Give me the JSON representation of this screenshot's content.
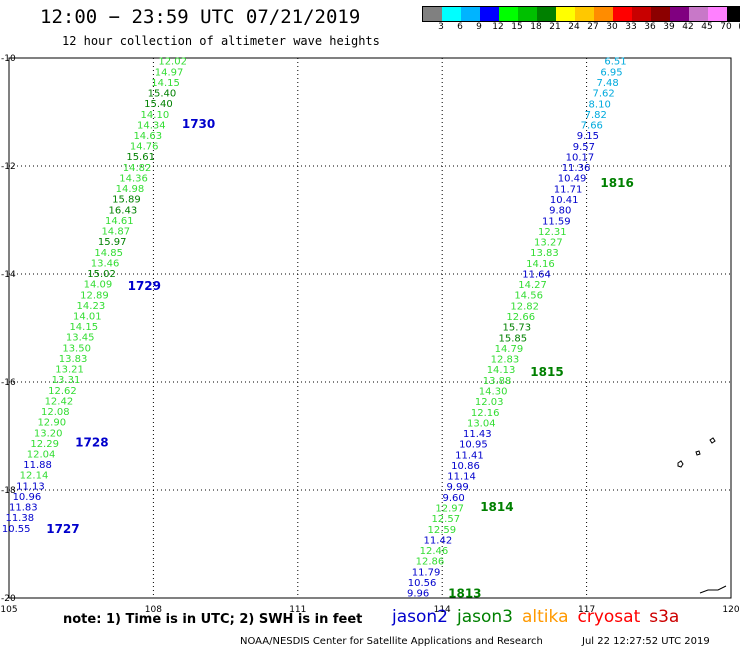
{
  "header": {
    "title": "12:00 − 23:59 UTC 07/21/2019",
    "subtitle": "12 hour collection of altimeter wave heights"
  },
  "colorbar": {
    "colors": [
      "#808080",
      "#00ffff",
      "#00b4ff",
      "#0000ff",
      "#00ff00",
      "#00c000",
      "#008000",
      "#ffff00",
      "#ffc800",
      "#ff8c00",
      "#ff0000",
      "#c80000",
      "#8c0000",
      "#800080",
      "#c878c8",
      "#ff80ff",
      "#000000"
    ],
    "labels": [
      "3",
      "6",
      "9",
      "12",
      "15",
      "18",
      "21",
      "24",
      "27",
      "30",
      "33",
      "36",
      "39",
      "42",
      "45",
      "70",
      "(ft)"
    ]
  },
  "chart_data": {
    "type": "map",
    "xlabel_ticks": [
      "105",
      "108",
      "111",
      "114",
      "117",
      "120"
    ],
    "ylabel_ticks": [
      "-10",
      "-12",
      "-14",
      "-16",
      "-18",
      "-20"
    ],
    "lon_range": [
      105,
      120
    ],
    "lat_range": [
      -20,
      -10
    ],
    "satellite_colors": {
      "jason2": "#0000cc",
      "jason3": "#008000",
      "altika": "#ff9900",
      "cryosat": "#ff0000",
      "s3a": "#cc0000"
    },
    "tracks": [
      {
        "pass_times": [
          {
            "label": "1727",
            "lat": -18.7,
            "sat": "jason2"
          },
          {
            "label": "1728",
            "lat": -17.1,
            "sat": "jason2"
          },
          {
            "label": "1729",
            "lat": -14.2,
            "sat": "jason2"
          },
          {
            "label": "1730",
            "lat": -11.2,
            "sat": "jason2"
          }
        ],
        "lon_start": 105.15,
        "lat_start": -18.7,
        "lon_end": 108.4,
        "lat_end": -10.05,
        "points": [
          {
            "v": "10.55",
            "c": "#0000cc"
          },
          {
            "v": "11.38",
            "c": "#0000cc"
          },
          {
            "v": "11.83",
            "c": "#0000cc"
          },
          {
            "v": "10.96",
            "c": "#0000cc"
          },
          {
            "v": "11.13",
            "c": "#0000cc"
          },
          {
            "v": "12.14",
            "c": "#33dd33"
          },
          {
            "v": "11.88",
            "c": "#0000cc"
          },
          {
            "v": "12.04",
            "c": "#33dd33"
          },
          {
            "v": "12.29",
            "c": "#33dd33"
          },
          {
            "v": "13.20",
            "c": "#33dd33"
          },
          {
            "v": "12.90",
            "c": "#33dd33"
          },
          {
            "v": "12.08",
            "c": "#33dd33"
          },
          {
            "v": "12.42",
            "c": "#33dd33"
          },
          {
            "v": "12.62",
            "c": "#33dd33"
          },
          {
            "v": "13.31",
            "c": "#33dd33"
          },
          {
            "v": "13.21",
            "c": "#33dd33"
          },
          {
            "v": "13.83",
            "c": "#33dd33"
          },
          {
            "v": "13.50",
            "c": "#33dd33"
          },
          {
            "v": "13.45",
            "c": "#33dd33"
          },
          {
            "v": "14.15",
            "c": "#33dd33"
          },
          {
            "v": "14.01",
            "c": "#33dd33"
          },
          {
            "v": "14.23",
            "c": "#33dd33"
          },
          {
            "v": "12.89",
            "c": "#33dd33"
          },
          {
            "v": "14.09",
            "c": "#33dd33"
          },
          {
            "v": "15.02",
            "c": "#008000"
          },
          {
            "v": "13.46",
            "c": "#33dd33"
          },
          {
            "v": "14.85",
            "c": "#33dd33"
          },
          {
            "v": "15.97",
            "c": "#008000"
          },
          {
            "v": "14.87",
            "c": "#33dd33"
          },
          {
            "v": "14.61",
            "c": "#33dd33"
          },
          {
            "v": "16.43",
            "c": "#008000"
          },
          {
            "v": "15.89",
            "c": "#008000"
          },
          {
            "v": "14.98",
            "c": "#33dd33"
          },
          {
            "v": "14.36",
            "c": "#33dd33"
          },
          {
            "v": "14.82",
            "c": "#33dd33"
          },
          {
            "v": "15.61",
            "c": "#008000"
          },
          {
            "v": "14.76",
            "c": "#33dd33"
          },
          {
            "v": "14.63",
            "c": "#33dd33"
          },
          {
            "v": "14.34",
            "c": "#33dd33"
          },
          {
            "v": "14.10",
            "c": "#33dd33"
          },
          {
            "v": "15.40",
            "c": "#008000"
          },
          {
            "v": "15.40",
            "c": "#008000"
          },
          {
            "v": "14.15",
            "c": "#33dd33"
          },
          {
            "v": "14.97",
            "c": "#33dd33"
          },
          {
            "v": "12.02",
            "c": "#33dd33"
          }
        ]
      },
      {
        "pass_times": [
          {
            "label": "1813",
            "lat": -19.9,
            "sat": "jason3"
          },
          {
            "label": "1814",
            "lat": -18.3,
            "sat": "jason3"
          },
          {
            "label": "1815",
            "lat": -15.8,
            "sat": "jason3"
          },
          {
            "label": "1816",
            "lat": -12.3,
            "sat": "jason3"
          }
        ],
        "lon_start": 113.5,
        "lat_start": -19.9,
        "lon_end": 117.6,
        "lat_end": -10.05,
        "points": [
          {
            "v": "9.96",
            "c": "#0000cc"
          },
          {
            "v": "10.56",
            "c": "#0000cc"
          },
          {
            "v": "11.79",
            "c": "#0000cc"
          },
          {
            "v": "12.86",
            "c": "#33dd33"
          },
          {
            "v": "12.46",
            "c": "#33dd33"
          },
          {
            "v": "11.42",
            "c": "#0000cc"
          },
          {
            "v": "12.59",
            "c": "#33dd33"
          },
          {
            "v": "12.57",
            "c": "#33dd33"
          },
          {
            "v": "12.97",
            "c": "#33dd33"
          },
          {
            "v": "9.60",
            "c": "#0000cc"
          },
          {
            "v": "9.99",
            "c": "#0000cc"
          },
          {
            "v": "11.14",
            "c": "#0000cc"
          },
          {
            "v": "10.86",
            "c": "#0000cc"
          },
          {
            "v": "11.41",
            "c": "#0000cc"
          },
          {
            "v": "10.95",
            "c": "#0000cc"
          },
          {
            "v": "11.43",
            "c": "#0000cc"
          },
          {
            "v": "13.04",
            "c": "#33dd33"
          },
          {
            "v": "12.16",
            "c": "#33dd33"
          },
          {
            "v": "12.03",
            "c": "#33dd33"
          },
          {
            "v": "14.30",
            "c": "#33dd33"
          },
          {
            "v": "13.88",
            "c": "#33dd33"
          },
          {
            "v": "14.13",
            "c": "#33dd33"
          },
          {
            "v": "12.83",
            "c": "#33dd33"
          },
          {
            "v": "14.79",
            "c": "#33dd33"
          },
          {
            "v": "15.85",
            "c": "#008000"
          },
          {
            "v": "15.73",
            "c": "#008000"
          },
          {
            "v": "12.66",
            "c": "#33dd33"
          },
          {
            "v": "12.82",
            "c": "#33dd33"
          },
          {
            "v": "14.56",
            "c": "#33dd33"
          },
          {
            "v": "14.27",
            "c": "#33dd33"
          },
          {
            "v": "11.64",
            "c": "#0000cc"
          },
          {
            "v": "14.16",
            "c": "#33dd33"
          },
          {
            "v": "13.83",
            "c": "#33dd33"
          },
          {
            "v": "13.27",
            "c": "#33dd33"
          },
          {
            "v": "12.31",
            "c": "#33dd33"
          },
          {
            "v": "11.59",
            "c": "#0000cc"
          },
          {
            "v": "9.80",
            "c": "#0000cc"
          },
          {
            "v": "10.41",
            "c": "#0000cc"
          },
          {
            "v": "11.71",
            "c": "#0000cc"
          },
          {
            "v": "10.49",
            "c": "#0000cc"
          },
          {
            "v": "11.36",
            "c": "#0000cc"
          },
          {
            "v": "10.17",
            "c": "#0000cc"
          },
          {
            "v": "9.57",
            "c": "#0000cc"
          },
          {
            "v": "9.15",
            "c": "#0000cc"
          },
          {
            "v": "7.66",
            "c": "#00aadd"
          },
          {
            "v": "7.82",
            "c": "#00aadd"
          },
          {
            "v": "8.10",
            "c": "#00aadd"
          },
          {
            "v": "7.62",
            "c": "#00aadd"
          },
          {
            "v": "7.48",
            "c": "#00aadd"
          },
          {
            "v": "6.95",
            "c": "#00aadd"
          },
          {
            "v": "6.51",
            "c": "#00aadd"
          }
        ]
      }
    ]
  },
  "footer": {
    "note": "note:  1) Time is in UTC;  2) SWH is in feet",
    "satellites": [
      {
        "name": "jason2",
        "color": "#0000cc"
      },
      {
        "name": "jason3",
        "color": "#008000"
      },
      {
        "name": "altika",
        "color": "#ff9900"
      },
      {
        "name": "cryosat",
        "color": "#ff0000"
      },
      {
        "name": "s3a",
        "color": "#cc0000"
      }
    ],
    "credit": "NOAA/NESDIS Center for Satellite Applications and Research",
    "timestamp": "Jul 22 12:27:52 UTC 2019"
  }
}
